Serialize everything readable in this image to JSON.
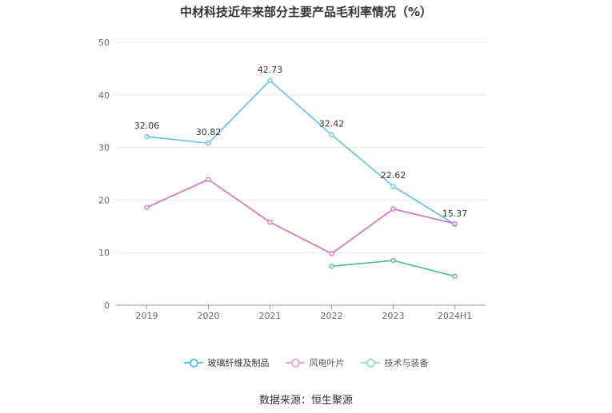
{
  "chart_data": {
    "type": "line",
    "title": "中材科技近年来部分主要产品毛利率情况（%）",
    "categories": [
      "2019",
      "2020",
      "2021",
      "2022",
      "2023",
      "2024H1"
    ],
    "ylim": [
      0,
      50
    ],
    "yticks": [
      "0",
      "10",
      "20",
      "30",
      "40",
      "50"
    ],
    "grid": true,
    "legend_position": "bottom",
    "series": [
      {
        "name": "玻璃纤维及制品",
        "color": "#5bc0eb",
        "values": [
          32.06,
          30.82,
          42.73,
          32.42,
          22.62,
          15.37
        ],
        "labels": [
          "32.06",
          "30.82",
          "42.73",
          "32.42",
          "22.62",
          "15.37"
        ],
        "highlighted": true
      },
      {
        "name": "风电叶片",
        "color": "#d46eb8",
        "values": [
          18.6,
          23.9,
          15.8,
          9.8,
          18.3,
          15.5
        ],
        "highlighted": false
      },
      {
        "name": "技术与装备",
        "color": "#4fba9b",
        "values": [
          null,
          null,
          null,
          7.4,
          8.5,
          5.5
        ],
        "highlighted": false
      }
    ]
  },
  "source": "数据来源：恒生聚源"
}
